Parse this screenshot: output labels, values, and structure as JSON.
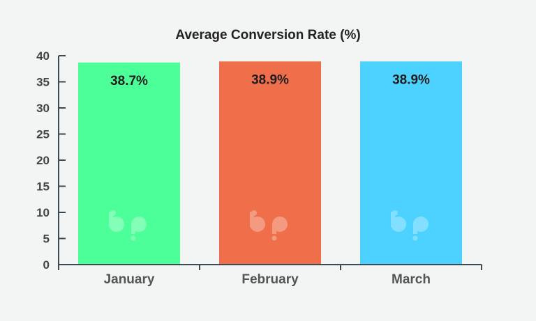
{
  "chart_data": {
    "type": "bar",
    "title": "Average Conversion Rate (%)",
    "xlabel": "",
    "ylabel": "",
    "categories": [
      "January",
      "February",
      "March"
    ],
    "values": [
      38.7,
      38.9,
      38.9
    ],
    "data_labels": [
      "38.7%",
      "38.9%",
      "38.9%"
    ],
    "bar_colors": [
      "#4dff99",
      "#ef6f4b",
      "#4dd2ff"
    ],
    "ylim": [
      0,
      40
    ],
    "yticks": [
      0,
      5,
      10,
      15,
      20,
      25,
      30,
      35,
      40
    ],
    "grid": false,
    "legend": "none",
    "watermark": "bp"
  }
}
